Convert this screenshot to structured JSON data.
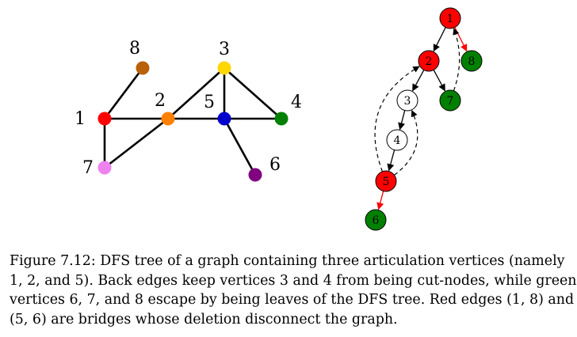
{
  "graph": {
    "vertices": [
      {
        "id": "1",
        "label": "1",
        "color": "#ff0000"
      },
      {
        "id": "2",
        "label": "2",
        "color": "#ff8000"
      },
      {
        "id": "3",
        "label": "3",
        "color": "#ffd700"
      },
      {
        "id": "4",
        "label": "4",
        "color": "#008000"
      },
      {
        "id": "5",
        "label": "5",
        "color": "#0000cd"
      },
      {
        "id": "6",
        "label": "6",
        "color": "#800080"
      },
      {
        "id": "7",
        "label": "7",
        "color": "#ee82ee"
      },
      {
        "id": "8",
        "label": "8",
        "color": "#b8600a"
      }
    ],
    "edges": [
      [
        "1",
        "8"
      ],
      [
        "1",
        "2"
      ],
      [
        "1",
        "7"
      ],
      [
        "7",
        "2"
      ],
      [
        "2",
        "5"
      ],
      [
        "2",
        "3"
      ],
      [
        "3",
        "5"
      ],
      [
        "3",
        "4"
      ],
      [
        "5",
        "4"
      ],
      [
        "5",
        "6"
      ]
    ]
  },
  "dfs_tree": {
    "nodes": [
      {
        "id": "1",
        "label": "1",
        "fill": "#ff0000"
      },
      {
        "id": "2",
        "label": "2",
        "fill": "#ff0000"
      },
      {
        "id": "3",
        "label": "3",
        "fill": "#ffffff"
      },
      {
        "id": "4",
        "label": "4",
        "fill": "#ffffff"
      },
      {
        "id": "5",
        "label": "5",
        "fill": "#ff0000"
      },
      {
        "id": "6",
        "label": "6",
        "fill": "#008000"
      },
      {
        "id": "7",
        "label": "7",
        "fill": "#008000"
      },
      {
        "id": "8",
        "label": "8",
        "fill": "#008000"
      }
    ],
    "tree_edges": [
      {
        "from": "1",
        "to": "2",
        "color": "#000000"
      },
      {
        "from": "1",
        "to": "8",
        "color": "#ff0000"
      },
      {
        "from": "2",
        "to": "3",
        "color": "#000000"
      },
      {
        "from": "2",
        "to": "7",
        "color": "#000000"
      },
      {
        "from": "3",
        "to": "4",
        "color": "#000000"
      },
      {
        "from": "4",
        "to": "5",
        "color": "#000000"
      },
      {
        "from": "5",
        "to": "6",
        "color": "#ff0000"
      }
    ],
    "back_edges": [
      {
        "from": "7",
        "to": "1"
      },
      {
        "from": "5",
        "to": "2"
      },
      {
        "from": "5",
        "to": "3"
      }
    ]
  },
  "caption": {
    "lines": [
      "Figure 7.12: DFS tree of a graph containing three articulation vertices (namely",
      "1, 2, and 5). Back edges keep vertices 3 and 4 from being cut-nodes, while green",
      "vertices 6, 7, and 8 escape by being leaves of the DFS tree. Red edges (1, 8) and",
      "(5, 6) are bridges whose deletion disconnect the graph."
    ]
  }
}
